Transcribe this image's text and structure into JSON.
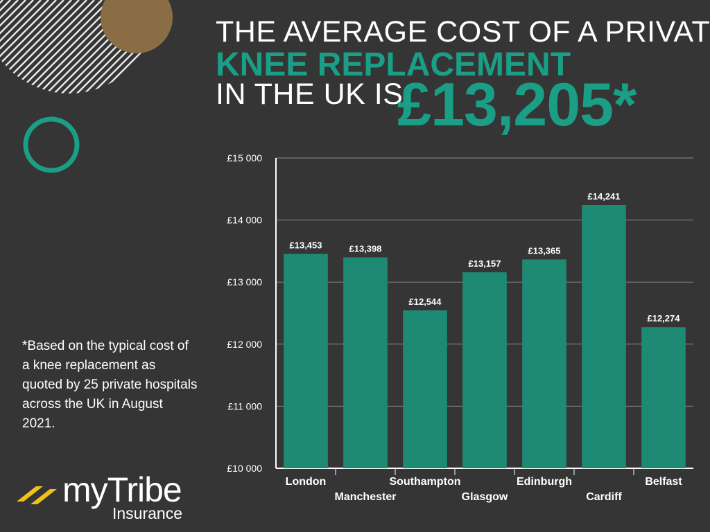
{
  "headline": {
    "line1": "THE AVERAGE COST OF A PRIVATE",
    "line2": "KNEE REPLACEMENT",
    "line3": "IN THE UK IS",
    "price": "£13,205*"
  },
  "footnote": "*Based on the typical cost of a knee replacement as quoted by 25 private hospitals across the UK in August 2021.",
  "logo": {
    "word": "myTribe",
    "sub": "Insurance"
  },
  "colors": {
    "background": "#353535",
    "accent": "#1a9e86",
    "bar": "#1f8a74",
    "gold": "#8a6d45",
    "logo_yellow": "#f2c21b"
  },
  "chart_data": {
    "type": "bar",
    "categories": [
      "London",
      "Manchester",
      "Southampton",
      "Glasgow",
      "Edinburgh",
      "Cardiff",
      "Belfast"
    ],
    "values": [
      13453,
      13398,
      12544,
      13157,
      13365,
      14241,
      12274
    ],
    "data_labels": [
      "£13,453",
      "£13,398",
      "£12,544",
      "£13,157",
      "£13,365",
      "£14,241",
      "£12,274"
    ],
    "ylim": [
      10000,
      15000
    ],
    "yticks": [
      10000,
      11000,
      12000,
      13000,
      14000,
      15000
    ],
    "ytick_labels": [
      "£10 000",
      "£11 000",
      "£12 000",
      "£13 000",
      "£14 000",
      "£15 000"
    ],
    "grid": true,
    "legend": "none"
  }
}
